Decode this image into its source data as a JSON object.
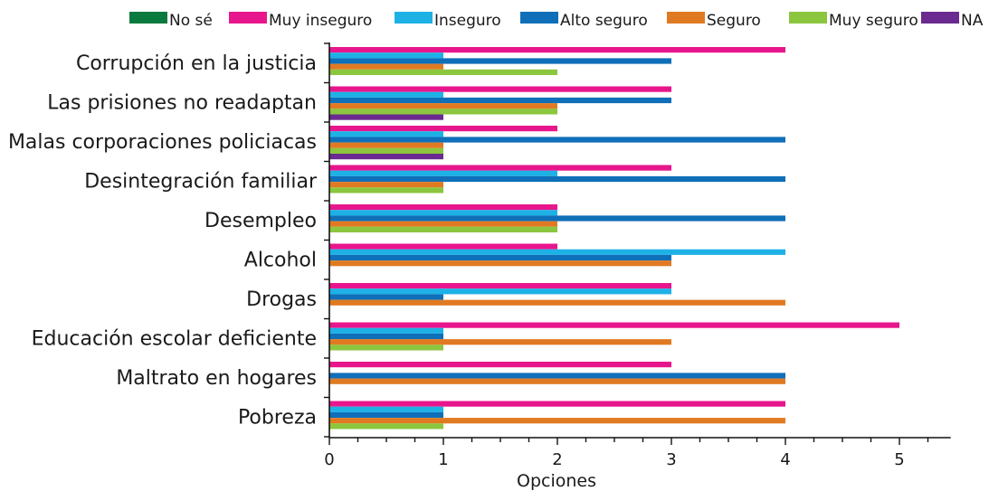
{
  "chart_data": {
    "type": "bar",
    "orientation": "horizontal",
    "xlabel": "Opciones",
    "xlim": [
      0,
      5.45
    ],
    "xticks": [
      0,
      1,
      2,
      3,
      4,
      5
    ],
    "xminor_step": 0.25,
    "grid": false,
    "legend_position": "top",
    "categories": [
      "Corrupción en la justicia",
      "Las prisiones no readaptan",
      "Malas corporaciones policiacas",
      "Desintegración familiar",
      "Desempleo",
      "Alcohol",
      "Drogas",
      "Educación escolar deficiente",
      "Maltrato en hogares",
      "Pobreza"
    ],
    "series": [
      {
        "name": "No sé",
        "color": "#0b7a3e",
        "values": [
          0,
          0,
          0,
          0,
          0,
          0,
          0,
          0,
          0,
          0
        ]
      },
      {
        "name": "Muy inseguro",
        "color": "#e8168c",
        "values": [
          4,
          3,
          2,
          3,
          2,
          2,
          3,
          5,
          3,
          4
        ]
      },
      {
        "name": "Inseguro",
        "color": "#1eb1e6",
        "values": [
          1,
          1,
          1,
          2,
          2,
          4,
          3,
          1,
          0,
          1
        ]
      },
      {
        "name": "Alto seguro",
        "color": "#0f6fb8",
        "values": [
          3,
          3,
          4,
          4,
          4,
          3,
          1,
          1,
          4,
          1
        ]
      },
      {
        "name": "Seguro",
        "color": "#e07a22",
        "values": [
          1,
          2,
          1,
          1,
          2,
          3,
          4,
          3,
          4,
          4
        ]
      },
      {
        "name": "Muy seguro",
        "color": "#8cc63e",
        "values": [
          2,
          2,
          1,
          1,
          2,
          0,
          0,
          1,
          0,
          1
        ]
      },
      {
        "name": "NA",
        "color": "#6a2a90",
        "values": [
          0,
          1,
          1,
          0,
          0,
          0,
          0,
          0,
          0,
          0
        ]
      }
    ]
  }
}
